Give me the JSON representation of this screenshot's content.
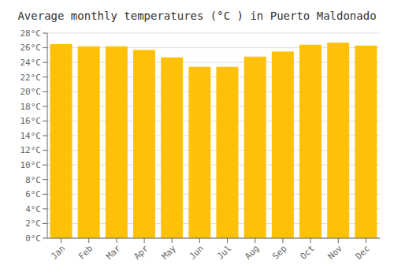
{
  "chart_data": {
    "type": "bar",
    "title": "Average monthly temperatures (°C ) in Puerto Maldonado",
    "categories": [
      "Jan",
      "Feb",
      "Mar",
      "Apr",
      "May",
      "Jun",
      "Jul",
      "Aug",
      "Sep",
      "Oct",
      "Nov",
      "Dec"
    ],
    "values": [
      26.5,
      26.2,
      26.2,
      25.7,
      24.7,
      23.4,
      23.4,
      24.8,
      25.5,
      26.4,
      26.7,
      26.3
    ],
    "color": "#FFC107",
    "ylim": [
      0,
      28
    ],
    "yticks": [
      {
        "value": 0,
        "label": "0°C"
      },
      {
        "value": 2,
        "label": "2°C"
      },
      {
        "value": 4,
        "label": "4°C"
      },
      {
        "value": 6,
        "label": "6°C"
      },
      {
        "value": 8,
        "label": "8°C"
      },
      {
        "value": 10,
        "label": "10°C"
      },
      {
        "value": 12,
        "label": "12°C"
      },
      {
        "value": 14,
        "label": "14°C"
      },
      {
        "value": 16,
        "label": "16°C"
      },
      {
        "value": 18,
        "label": "18°C"
      },
      {
        "value": 20,
        "label": "20°C"
      },
      {
        "value": 22,
        "label": "22°C"
      },
      {
        "value": 24,
        "label": "24°C"
      },
      {
        "value": 26,
        "label": "26°C"
      },
      {
        "value": 28,
        "label": "28°C"
      }
    ],
    "grid": true
  }
}
